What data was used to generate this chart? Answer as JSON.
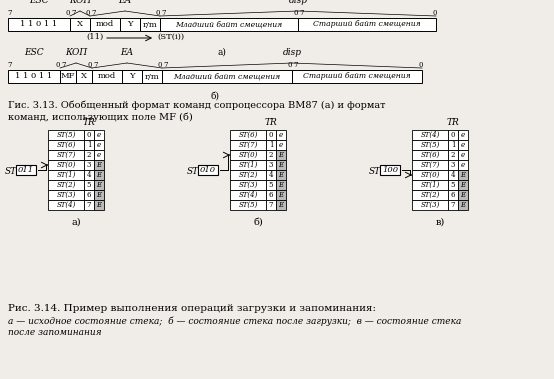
{
  "bg_color": "#f0ede8",
  "fig313_caption_line1": "Гис. 3.13. Обобщенный формат команд сопроцессора ВМ87 (а) и формат",
  "fig313_caption_line2": "команд, использующих поле MF (б)",
  "fig314_caption": "Рис. 3.14. Пример выполнения операций загрузки и запоминания:",
  "fig314_sub": "а — исходное состояние стека;  б — состояние стека после загрузки;  в — состояние стека\nпосле запоминания",
  "format_a_fields": [
    "1 1 0 1 1",
    "X",
    "mod",
    "Y",
    "r/m",
    "Младший байт смещения",
    "Старший байт смещения"
  ],
  "format_a_widths": [
    62,
    20,
    30,
    20,
    20,
    138,
    138
  ],
  "format_b_fields": [
    "1 1 0 1 1",
    "MF",
    "X",
    "mod",
    "Y",
    "r/m",
    "Младший байт смещения",
    "Старший байт смещения"
  ],
  "format_b_widths": [
    52,
    16,
    16,
    30,
    20,
    20,
    130,
    130
  ],
  "stack_a_val": "011",
  "stack_b_val": "010",
  "stack_c_val": "100",
  "stack_a_rows": [
    "ST(5)",
    "ST(6)",
    "ST(7)",
    "ST(0)",
    "ST(1)",
    "ST(2)",
    "ST(3)",
    "ST(4)"
  ],
  "stack_b_rows": [
    "ST(6)",
    "ST(7)",
    "ST(0)",
    "ST(1)",
    "ST(2)",
    "ST(3)",
    "ST(4)",
    "ST(5)"
  ],
  "stack_c_rows": [
    "ST(4)",
    "ST(5)",
    "ST(6)",
    "ST(7)",
    "ST(0)",
    "ST(1)",
    "ST(2)",
    "ST(3)"
  ],
  "stack_a_filled": [
    0,
    0,
    0,
    1,
    1,
    1,
    1,
    1
  ],
  "stack_b_filled": [
    0,
    0,
    1,
    1,
    1,
    1,
    1,
    1
  ],
  "stack_c_filled": [
    0,
    0,
    0,
    0,
    1,
    1,
    1,
    1
  ],
  "stack_a_arrow": 3,
  "stack_b_arrow": 2,
  "stack_c_arrow": 4
}
